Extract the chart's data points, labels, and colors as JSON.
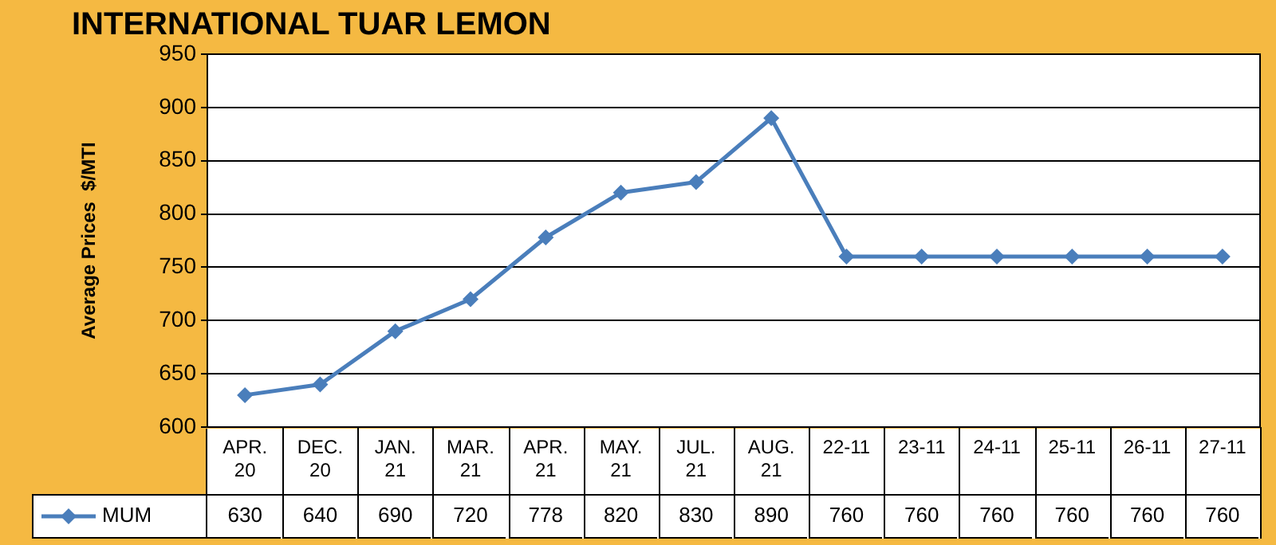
{
  "chart_data": {
    "type": "line",
    "title": "INTERNATIONAL TUAR LEMON",
    "ylabel": "Average Prices  $/MTI",
    "categories": [
      "APR. 20",
      "DEC. 20",
      "JAN. 21",
      "MAR. 21",
      "APR. 21",
      "MAY. 21",
      "JUL. 21",
      "AUG. 21",
      "22-11",
      "23-11",
      "24-11",
      "25-11",
      "26-11",
      "27-11"
    ],
    "series": [
      {
        "name": "MUM",
        "color": "#4a7ebb",
        "values": [
          630,
          640,
          690,
          720,
          778,
          820,
          830,
          890,
          760,
          760,
          760,
          760,
          760,
          760
        ]
      }
    ],
    "ylim": [
      600,
      950
    ],
    "yticks": [
      600,
      650,
      700,
      750,
      800,
      850,
      900,
      950
    ],
    "grid": "y",
    "legend": "bottom left",
    "marker": "diamond",
    "line_style": "solid",
    "data_labels": true
  }
}
